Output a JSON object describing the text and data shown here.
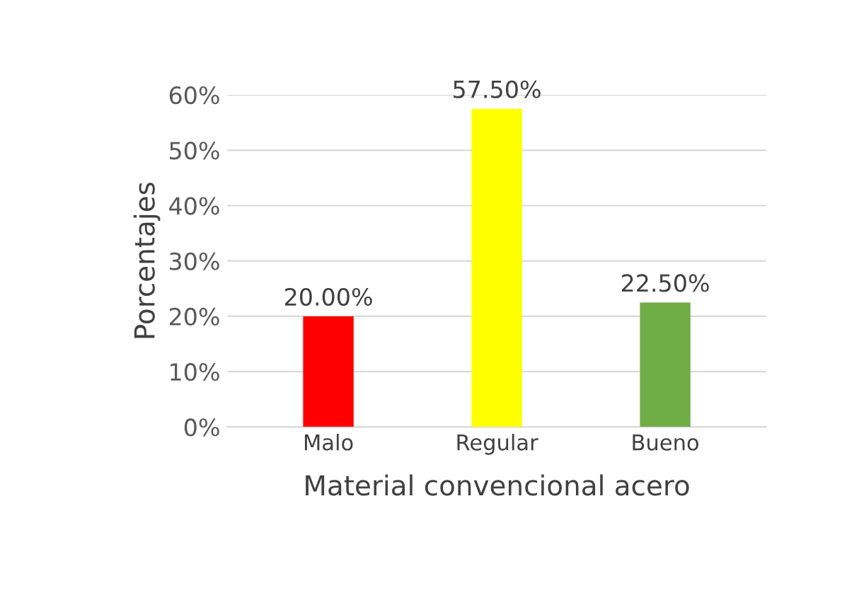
{
  "chart_data": {
    "type": "bar",
    "xlabel": "Material convencional acero",
    "ylabel": "Porcentajes",
    "categories": [
      "Malo",
      "Regular",
      "Bueno"
    ],
    "values": [
      20,
      57.5,
      22.5
    ],
    "colors": [
      "#ff0000",
      "#ffff00",
      "#70ad47"
    ],
    "value_labels": [
      "20.00%",
      "57.50%",
      "22.50%"
    ],
    "ylim": [
      0,
      60
    ],
    "yticks": [
      {
        "value": 0,
        "label": "0%"
      },
      {
        "value": 10,
        "label": "10%"
      },
      {
        "value": 20,
        "label": "20%"
      },
      {
        "value": 30,
        "label": "30%"
      },
      {
        "value": 40,
        "label": "40%"
      },
      {
        "value": 50,
        "label": "50%"
      },
      {
        "value": 60,
        "label": "60%"
      }
    ],
    "grid": "y"
  }
}
